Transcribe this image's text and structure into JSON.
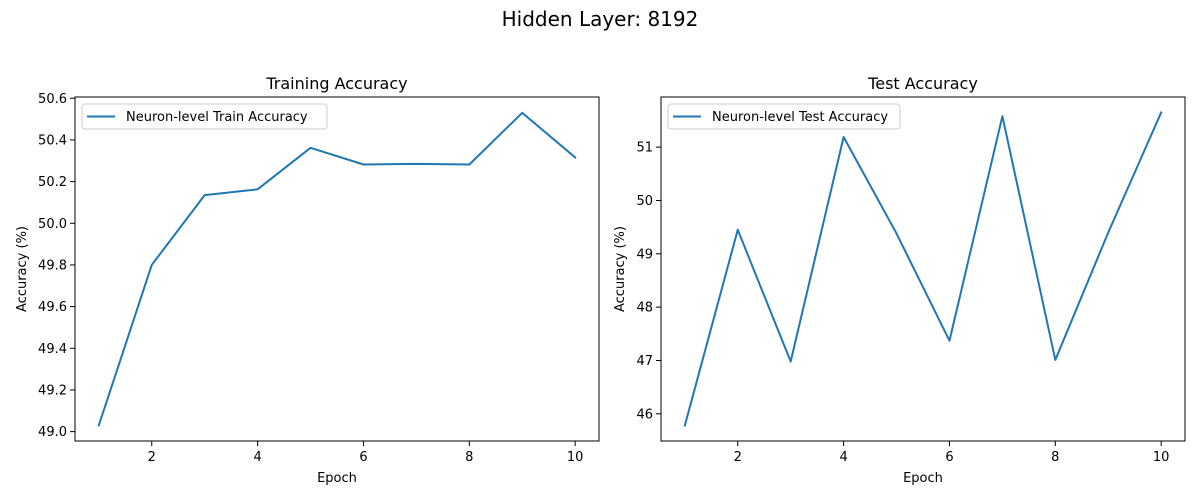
{
  "figure": {
    "suptitle": "Hidden Layer: 8192"
  },
  "colors": {
    "series": "#1f77b4"
  },
  "chart_data": [
    {
      "type": "line",
      "title": "Training Accuracy",
      "xlabel": "Epoch",
      "ylabel": "Accuracy (%)",
      "xlim": [
        0.55,
        10.45
      ],
      "ylim": [
        48.955,
        50.606
      ],
      "xticks": [
        2,
        4,
        6,
        8,
        10
      ],
      "xtick_labels": [
        "2",
        "4",
        "6",
        "8",
        "10"
      ],
      "yticks": [
        49.0,
        49.2,
        49.4,
        49.6,
        49.8,
        50.0,
        50.2,
        50.4,
        50.6
      ],
      "ytick_labels": [
        "49.0",
        "49.2",
        "49.4",
        "49.6",
        "49.8",
        "50.0",
        "50.2",
        "50.4",
        "50.6"
      ],
      "legend_position": "upper left",
      "grid": false,
      "series": [
        {
          "name": "Neuron-level Train Accuracy",
          "x": [
            1,
            2,
            3,
            4,
            5,
            6,
            7,
            8,
            9,
            10
          ],
          "y": [
            49.03,
            49.8,
            50.135,
            50.163,
            50.362,
            50.282,
            50.285,
            50.282,
            50.53,
            50.316
          ]
        }
      ]
    },
    {
      "type": "line",
      "title": "Test Accuracy",
      "xlabel": "Epoch",
      "ylabel": "Accuracy (%)",
      "xlim": [
        0.55,
        10.45
      ],
      "ylim": [
        45.49,
        51.94
      ],
      "xticks": [
        2,
        4,
        6,
        8,
        10
      ],
      "xtick_labels": [
        "2",
        "4",
        "6",
        "8",
        "10"
      ],
      "yticks": [
        46,
        47,
        48,
        49,
        50,
        51
      ],
      "ytick_labels": [
        "46",
        "47",
        "48",
        "49",
        "50",
        "51"
      ],
      "legend_position": "upper left",
      "grid": false,
      "series": [
        {
          "name": "Neuron-level Test Accuracy",
          "x": [
            1,
            2,
            3,
            4,
            5,
            6,
            7,
            8,
            9,
            10
          ],
          "y": [
            45.78,
            49.45,
            46.98,
            51.19,
            49.38,
            47.37,
            51.58,
            47.01,
            49.4,
            51.65
          ]
        }
      ]
    }
  ]
}
